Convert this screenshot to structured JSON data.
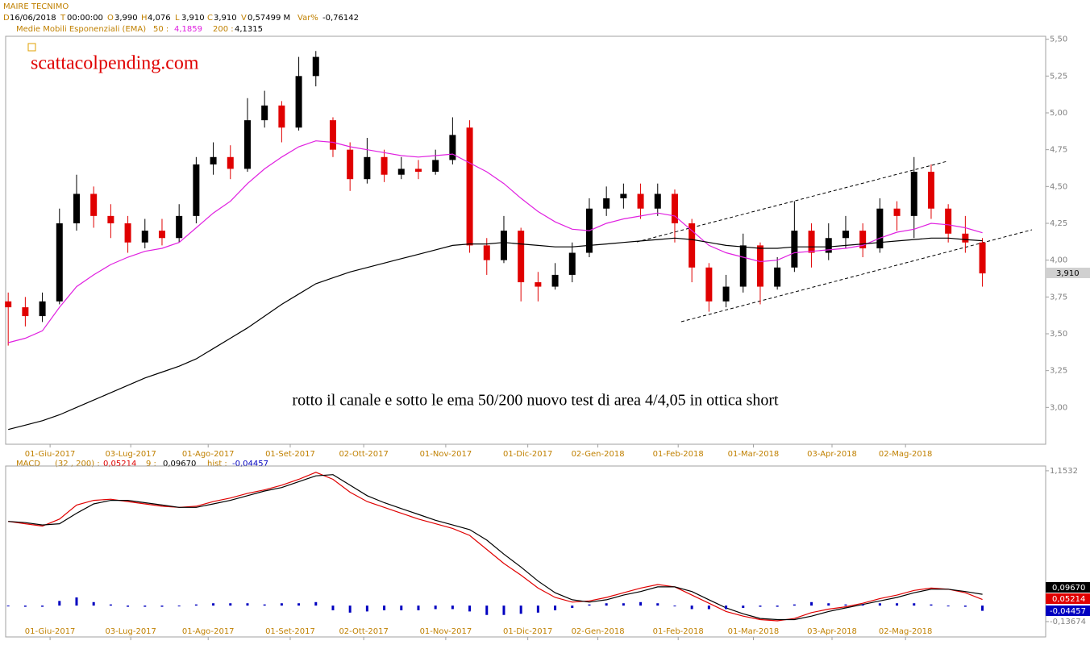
{
  "header": {
    "instrument": "MAIRE TECNIMO",
    "fields": [
      {
        "label": "D",
        "value": "16/06/2018"
      },
      {
        "label": "T",
        "value": "00:00:00"
      },
      {
        "label": "O",
        "value": "3,990"
      },
      {
        "label": "H",
        "value": "4,076"
      },
      {
        "label": "L",
        "value": "3,910"
      },
      {
        "label": "C",
        "value": "3,910"
      },
      {
        "label": "V",
        "value": "0,57499 M"
      },
      {
        "label": "Var%",
        "value": "-0,76142"
      }
    ]
  },
  "chart_data": [
    {
      "type": "candlestick",
      "annotations": [
        "scattacolpending.com",
        "rotto il canale e sotto le ema 50/200 nuovo test di area 4/4,05 in ottica short"
      ],
      "indicator": "Medie Mobili Esponenziali (EMA)",
      "up_color": "#000000",
      "down_color": "#e00000",
      "xlim": [
        -0.15,
        60.7
      ],
      "xticks": [
        {
          "value": 2.45,
          "label": "01-Giu-2017"
        },
        {
          "value": 7.17,
          "label": "03-Lug-2017"
        },
        {
          "value": 11.7,
          "label": "01-Ago-2017"
        },
        {
          "value": 16.5,
          "label": "01-Set-2017"
        },
        {
          "value": 20.8,
          "label": "02-Ott-2017"
        },
        {
          "value": 25.6,
          "label": "01-Nov-2017"
        },
        {
          "value": 30.4,
          "label": "01-Dic-2017"
        },
        {
          "value": 34.5,
          "label": "02-Gen-2018"
        },
        {
          "value": 39.2,
          "label": "01-Feb-2018"
        },
        {
          "value": 43.6,
          "label": "01-Mar-2018"
        },
        {
          "value": 48.2,
          "label": "03-Apr-2018"
        },
        {
          "value": 52.5,
          "label": "02-Mag-2018"
        }
      ],
      "ylim": [
        2.75,
        5.52
      ],
      "yticks": [
        {
          "value": 3,
          "label": "3,00"
        },
        {
          "value": 3.25,
          "label": "3,25"
        },
        {
          "value": 3.5,
          "label": "3,50"
        },
        {
          "value": 3.75,
          "label": "3,75"
        },
        {
          "value": 4,
          "label": "4,00"
        },
        {
          "value": 4.25,
          "label": "4,25"
        },
        {
          "value": 4.5,
          "label": "4,50"
        },
        {
          "value": 4.75,
          "label": "4,75"
        },
        {
          "value": 5,
          "label": "5,00"
        },
        {
          "value": 5.25,
          "label": "5,25"
        },
        {
          "value": 5.5,
          "label": "5,50"
        }
      ],
      "open": [
        3.72,
        3.68,
        3.62,
        3.72,
        4.25,
        4.45,
        4.3,
        4.25,
        4.12,
        4.2,
        4.15,
        4.3,
        4.65,
        4.7,
        4.62,
        4.95,
        5.05,
        4.9,
        5.25,
        4.95,
        4.75,
        4.55,
        4.7,
        4.58,
        4.62,
        4.6,
        4.68,
        4.9,
        4.1,
        4.0,
        4.2,
        3.85,
        3.82,
        3.9,
        4.05,
        4.35,
        4.42,
        4.45,
        4.35,
        4.45,
        4.25,
        3.95,
        3.72,
        3.82,
        4.1,
        3.82,
        3.95,
        4.2,
        4.05,
        4.15,
        4.2,
        4.08,
        4.35,
        4.3,
        4.6,
        4.35,
        4.18,
        4.12
      ],
      "high": [
        3.78,
        3.75,
        3.78,
        4.35,
        4.58,
        4.5,
        4.38,
        4.3,
        4.28,
        4.28,
        4.38,
        4.7,
        4.8,
        4.78,
        5.1,
        5.15,
        5.08,
        5.38,
        5.42,
        4.97,
        4.8,
        4.83,
        4.75,
        4.7,
        4.68,
        4.75,
        4.97,
        4.95,
        4.15,
        4.3,
        4.22,
        3.92,
        3.98,
        4.12,
        4.42,
        4.5,
        4.52,
        4.52,
        4.52,
        4.48,
        4.28,
        3.98,
        3.9,
        4.18,
        4.12,
        4.02,
        4.4,
        4.25,
        4.25,
        4.3,
        4.25,
        4.42,
        4.4,
        4.7,
        4.65,
        4.38,
        4.3,
        4.15
      ],
      "low": [
        3.42,
        3.55,
        3.58,
        3.7,
        4.2,
        4.22,
        4.15,
        4.05,
        4.08,
        4.1,
        4.12,
        4.25,
        4.58,
        4.55,
        4.6,
        4.9,
        4.8,
        4.88,
        5.18,
        4.7,
        4.47,
        4.52,
        4.53,
        4.55,
        4.55,
        4.58,
        4.65,
        4.05,
        3.9,
        3.98,
        3.72,
        3.72,
        3.8,
        3.85,
        4.02,
        4.3,
        4.35,
        4.28,
        4.3,
        4.12,
        3.85,
        3.65,
        3.68,
        3.78,
        3.7,
        3.8,
        3.92,
        3.95,
        4.0,
        4.08,
        4.02,
        4.05,
        4.2,
        4.15,
        4.28,
        4.12,
        4.05,
        3.82
      ],
      "close": [
        3.68,
        3.62,
        3.72,
        4.25,
        4.45,
        4.3,
        4.25,
        4.12,
        4.2,
        4.15,
        4.3,
        4.65,
        4.7,
        4.62,
        4.95,
        5.05,
        4.9,
        5.25,
        5.38,
        4.75,
        4.55,
        4.7,
        4.58,
        4.62,
        4.6,
        4.68,
        4.85,
        4.1,
        4.0,
        4.2,
        3.85,
        3.82,
        3.9,
        4.05,
        4.35,
        4.42,
        4.45,
        4.35,
        4.45,
        4.25,
        3.95,
        3.72,
        3.82,
        4.1,
        3.82,
        3.95,
        4.2,
        4.05,
        4.15,
        4.2,
        4.08,
        4.35,
        4.3,
        4.6,
        4.35,
        4.18,
        4.12,
        3.91
      ],
      "series": [
        {
          "name": "50 :",
          "color": "#e020e0",
          "value_label": "4,1859",
          "values": [
            3.44,
            3.47,
            3.52,
            3.68,
            3.82,
            3.9,
            3.97,
            4.02,
            4.06,
            4.08,
            4.12,
            4.22,
            4.32,
            4.4,
            4.52,
            4.62,
            4.7,
            4.77,
            4.81,
            4.8,
            4.77,
            4.75,
            4.73,
            4.71,
            4.7,
            4.71,
            4.72,
            4.66,
            4.6,
            4.52,
            4.42,
            4.33,
            4.26,
            4.21,
            4.2,
            4.25,
            4.28,
            4.3,
            4.32,
            4.3,
            4.2,
            4.1,
            4.05,
            4.02,
            3.99,
            4.0,
            4.05,
            4.06,
            4.07,
            4.08,
            4.1,
            4.15,
            4.19,
            4.21,
            4.25,
            4.24,
            4.22,
            4.1859
          ]
        },
        {
          "name": "200 :",
          "color": "#000000",
          "value_label": "4,1315",
          "values": [
            2.85,
            2.88,
            2.91,
            2.95,
            3.0,
            3.05,
            3.1,
            3.15,
            3.2,
            3.24,
            3.28,
            3.33,
            3.4,
            3.47,
            3.54,
            3.62,
            3.7,
            3.77,
            3.84,
            3.88,
            3.92,
            3.95,
            3.98,
            4.01,
            4.04,
            4.07,
            4.1,
            4.11,
            4.11,
            4.12,
            4.11,
            4.1,
            4.09,
            4.09,
            4.1,
            4.11,
            4.12,
            4.13,
            4.14,
            4.15,
            4.14,
            4.12,
            4.1,
            4.09,
            4.08,
            4.08,
            4.09,
            4.09,
            4.09,
            4.1,
            4.11,
            4.12,
            4.13,
            4.14,
            4.15,
            4.15,
            4.14,
            4.1315
          ]
        }
      ]
    },
    {
      "type": "macd",
      "title": "MACD",
      "xlim": [
        -0.15,
        60.7
      ],
      "xticks": [
        {
          "value": 2.45,
          "label": "01-Giu-2017"
        },
        {
          "value": 7.17,
          "label": "03-Lug-2017"
        },
        {
          "value": 11.7,
          "label": "01-Ago-2017"
        },
        {
          "value": 16.5,
          "label": "01-Set-2017"
        },
        {
          "value": 20.8,
          "label": "02-Ott-2017"
        },
        {
          "value": 25.6,
          "label": "01-Nov-2017"
        },
        {
          "value": 30.4,
          "label": "01-Dic-2017"
        },
        {
          "value": 34.5,
          "label": "02-Gen-2018"
        },
        {
          "value": 39.2,
          "label": "01-Feb-2018"
        },
        {
          "value": 43.6,
          "label": "01-Mar-2018"
        },
        {
          "value": 48.2,
          "label": "03-Apr-2018"
        },
        {
          "value": 52.5,
          "label": "02-Mag-2018"
        }
      ],
      "ylim": [
        -0.268,
        1.194
      ],
      "yticks": [
        {
          "value": 1.1532,
          "label": "1,1532"
        },
        {
          "value": -0.13674,
          "label": "-0,13674"
        }
      ],
      "series": [
        {
          "name": "(32 , 200) :",
          "color": "#e00000",
          "value_label": "0,05214",
          "values": [
            0.72,
            0.7,
            0.68,
            0.74,
            0.86,
            0.9,
            0.91,
            0.89,
            0.87,
            0.85,
            0.84,
            0.85,
            0.89,
            0.92,
            0.96,
            0.99,
            1.03,
            1.08,
            1.14,
            1.08,
            0.97,
            0.89,
            0.84,
            0.79,
            0.74,
            0.7,
            0.66,
            0.6,
            0.48,
            0.36,
            0.26,
            0.15,
            0.07,
            0.03,
            0.04,
            0.07,
            0.11,
            0.15,
            0.18,
            0.16,
            0.09,
            0.02,
            -0.05,
            -0.09,
            -0.12,
            -0.13,
            -0.11,
            -0.06,
            -0.03,
            -0.01,
            0.02,
            0.06,
            0.09,
            0.13,
            0.15,
            0.14,
            0.11,
            0.05214
          ]
        },
        {
          "name": "9 :",
          "color": "#000000",
          "value_label": "0,09670",
          "values": [
            0.72,
            0.71,
            0.69,
            0.7,
            0.79,
            0.87,
            0.9,
            0.9,
            0.88,
            0.86,
            0.84,
            0.84,
            0.87,
            0.9,
            0.94,
            0.98,
            1.01,
            1.06,
            1.11,
            1.12,
            1.03,
            0.94,
            0.88,
            0.83,
            0.78,
            0.73,
            0.69,
            0.65,
            0.56,
            0.44,
            0.33,
            0.21,
            0.11,
            0.05,
            0.03,
            0.05,
            0.09,
            0.12,
            0.16,
            0.16,
            0.12,
            0.05,
            -0.02,
            -0.07,
            -0.11,
            -0.12,
            -0.12,
            -0.09,
            -0.05,
            -0.02,
            0.01,
            0.04,
            0.07,
            0.11,
            0.14,
            0.14,
            0.12,
            0.0967
          ]
        },
        {
          "name": "hist :",
          "color": "#0000c0",
          "value_label": "-0,04457",
          "values": [
            0,
            -0.01,
            -0.01,
            0.04,
            0.07,
            0.03,
            0.01,
            -0.01,
            -0.01,
            -0.01,
            0,
            0.01,
            0.02,
            0.02,
            0.02,
            0.01,
            0.02,
            0.02,
            0.03,
            -0.04,
            -0.06,
            -0.05,
            -0.04,
            -0.04,
            -0.04,
            -0.03,
            -0.03,
            -0.05,
            -0.08,
            -0.08,
            -0.07,
            -0.06,
            -0.04,
            -0.02,
            0.01,
            0.02,
            0.02,
            0.03,
            0.02,
            0,
            -0.03,
            -0.03,
            -0.03,
            -0.02,
            -0.01,
            -0.01,
            0.01,
            0.03,
            0.02,
            0.01,
            0.01,
            0.02,
            0.02,
            0.02,
            0.01,
            0,
            -0.01,
            -0.04457
          ]
        }
      ]
    }
  ]
}
